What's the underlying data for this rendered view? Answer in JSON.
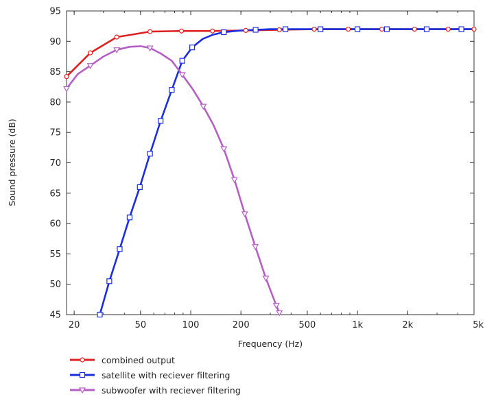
{
  "chart_data": {
    "type": "line",
    "title": "",
    "xlabel": "Frequency  (Hz)",
    "ylabel": "Sound pressure  (dB)",
    "x_scale": "log",
    "xlim": [
      18,
      5000
    ],
    "ylim": [
      45,
      95
    ],
    "x_ticks": [
      {
        "value": 20,
        "label": "20"
      },
      {
        "value": 50,
        "label": "50"
      },
      {
        "value": 100,
        "label": "100"
      },
      {
        "value": 200,
        "label": "200"
      },
      {
        "value": 500,
        "label": "500"
      },
      {
        "value": 1000,
        "label": "1k"
      },
      {
        "value": 2000,
        "label": "2k"
      },
      {
        "value": 5000,
        "label": "5k"
      }
    ],
    "y_ticks": [
      45,
      50,
      55,
      60,
      65,
      70,
      75,
      80,
      85,
      90,
      95
    ],
    "grid": false,
    "legend_position": "bottom",
    "series": [
      {
        "name": "combined output",
        "color": "#e02020",
        "marker": "circle",
        "x": [
          18,
          25,
          36,
          57,
          88,
          135,
          214,
          340,
          550,
          880,
          1400,
          2200,
          3500,
          5000
        ],
        "y": [
          84.2,
          88.1,
          90.7,
          91.6,
          91.7,
          91.7,
          91.8,
          91.9,
          92.0,
          92.0,
          92.0,
          92.0,
          92.0,
          92.0
        ]
      },
      {
        "name": "satellite with reciever filtering",
        "color": "#1a2ee0",
        "marker": "square",
        "x": [
          28.5,
          32.5,
          37.5,
          43,
          49.5,
          57,
          66,
          77,
          89,
          102,
          118,
          136,
          158,
          200,
          245,
          300,
          370,
          450,
          600,
          800,
          1000,
          1500,
          2000,
          2600,
          3200,
          4200,
          5000
        ],
        "y": [
          45.0,
          50.5,
          55.8,
          61.0,
          66.0,
          71.5,
          76.9,
          82.0,
          86.8,
          89.0,
          90.4,
          91.1,
          91.5,
          91.8,
          91.9,
          92.0,
          92.0,
          92.0,
          92.0,
          92.0,
          92.0,
          92.0,
          92.0,
          92.0,
          92.0,
          92.0,
          92.0
        ],
        "marker_x": [
          28.5,
          32.5,
          37.5,
          43,
          49.5,
          57,
          66,
          77,
          89,
          102,
          158,
          245,
          370,
          600,
          1000,
          1500,
          2600,
          4200
        ]
      },
      {
        "name": "subwoofer with reciever filtering",
        "color": "#b55fc4",
        "marker": "triangle-down",
        "x": [
          18,
          21,
          25,
          30,
          36,
          43,
          50,
          57,
          66,
          77,
          89,
          103,
          119,
          137,
          158,
          183,
          211,
          244,
          282,
          326,
          340
        ],
        "y": [
          82.2,
          84.6,
          86.0,
          87.5,
          88.6,
          89.1,
          89.2,
          88.9,
          88.0,
          86.8,
          84.5,
          82.1,
          79.3,
          76.2,
          72.3,
          67.2,
          61.6,
          56.2,
          51.0,
          46.5,
          45.3
        ],
        "marker_x": [
          18,
          25,
          36,
          57,
          89,
          119,
          158,
          183,
          211,
          244,
          282,
          326,
          340
        ]
      }
    ]
  }
}
